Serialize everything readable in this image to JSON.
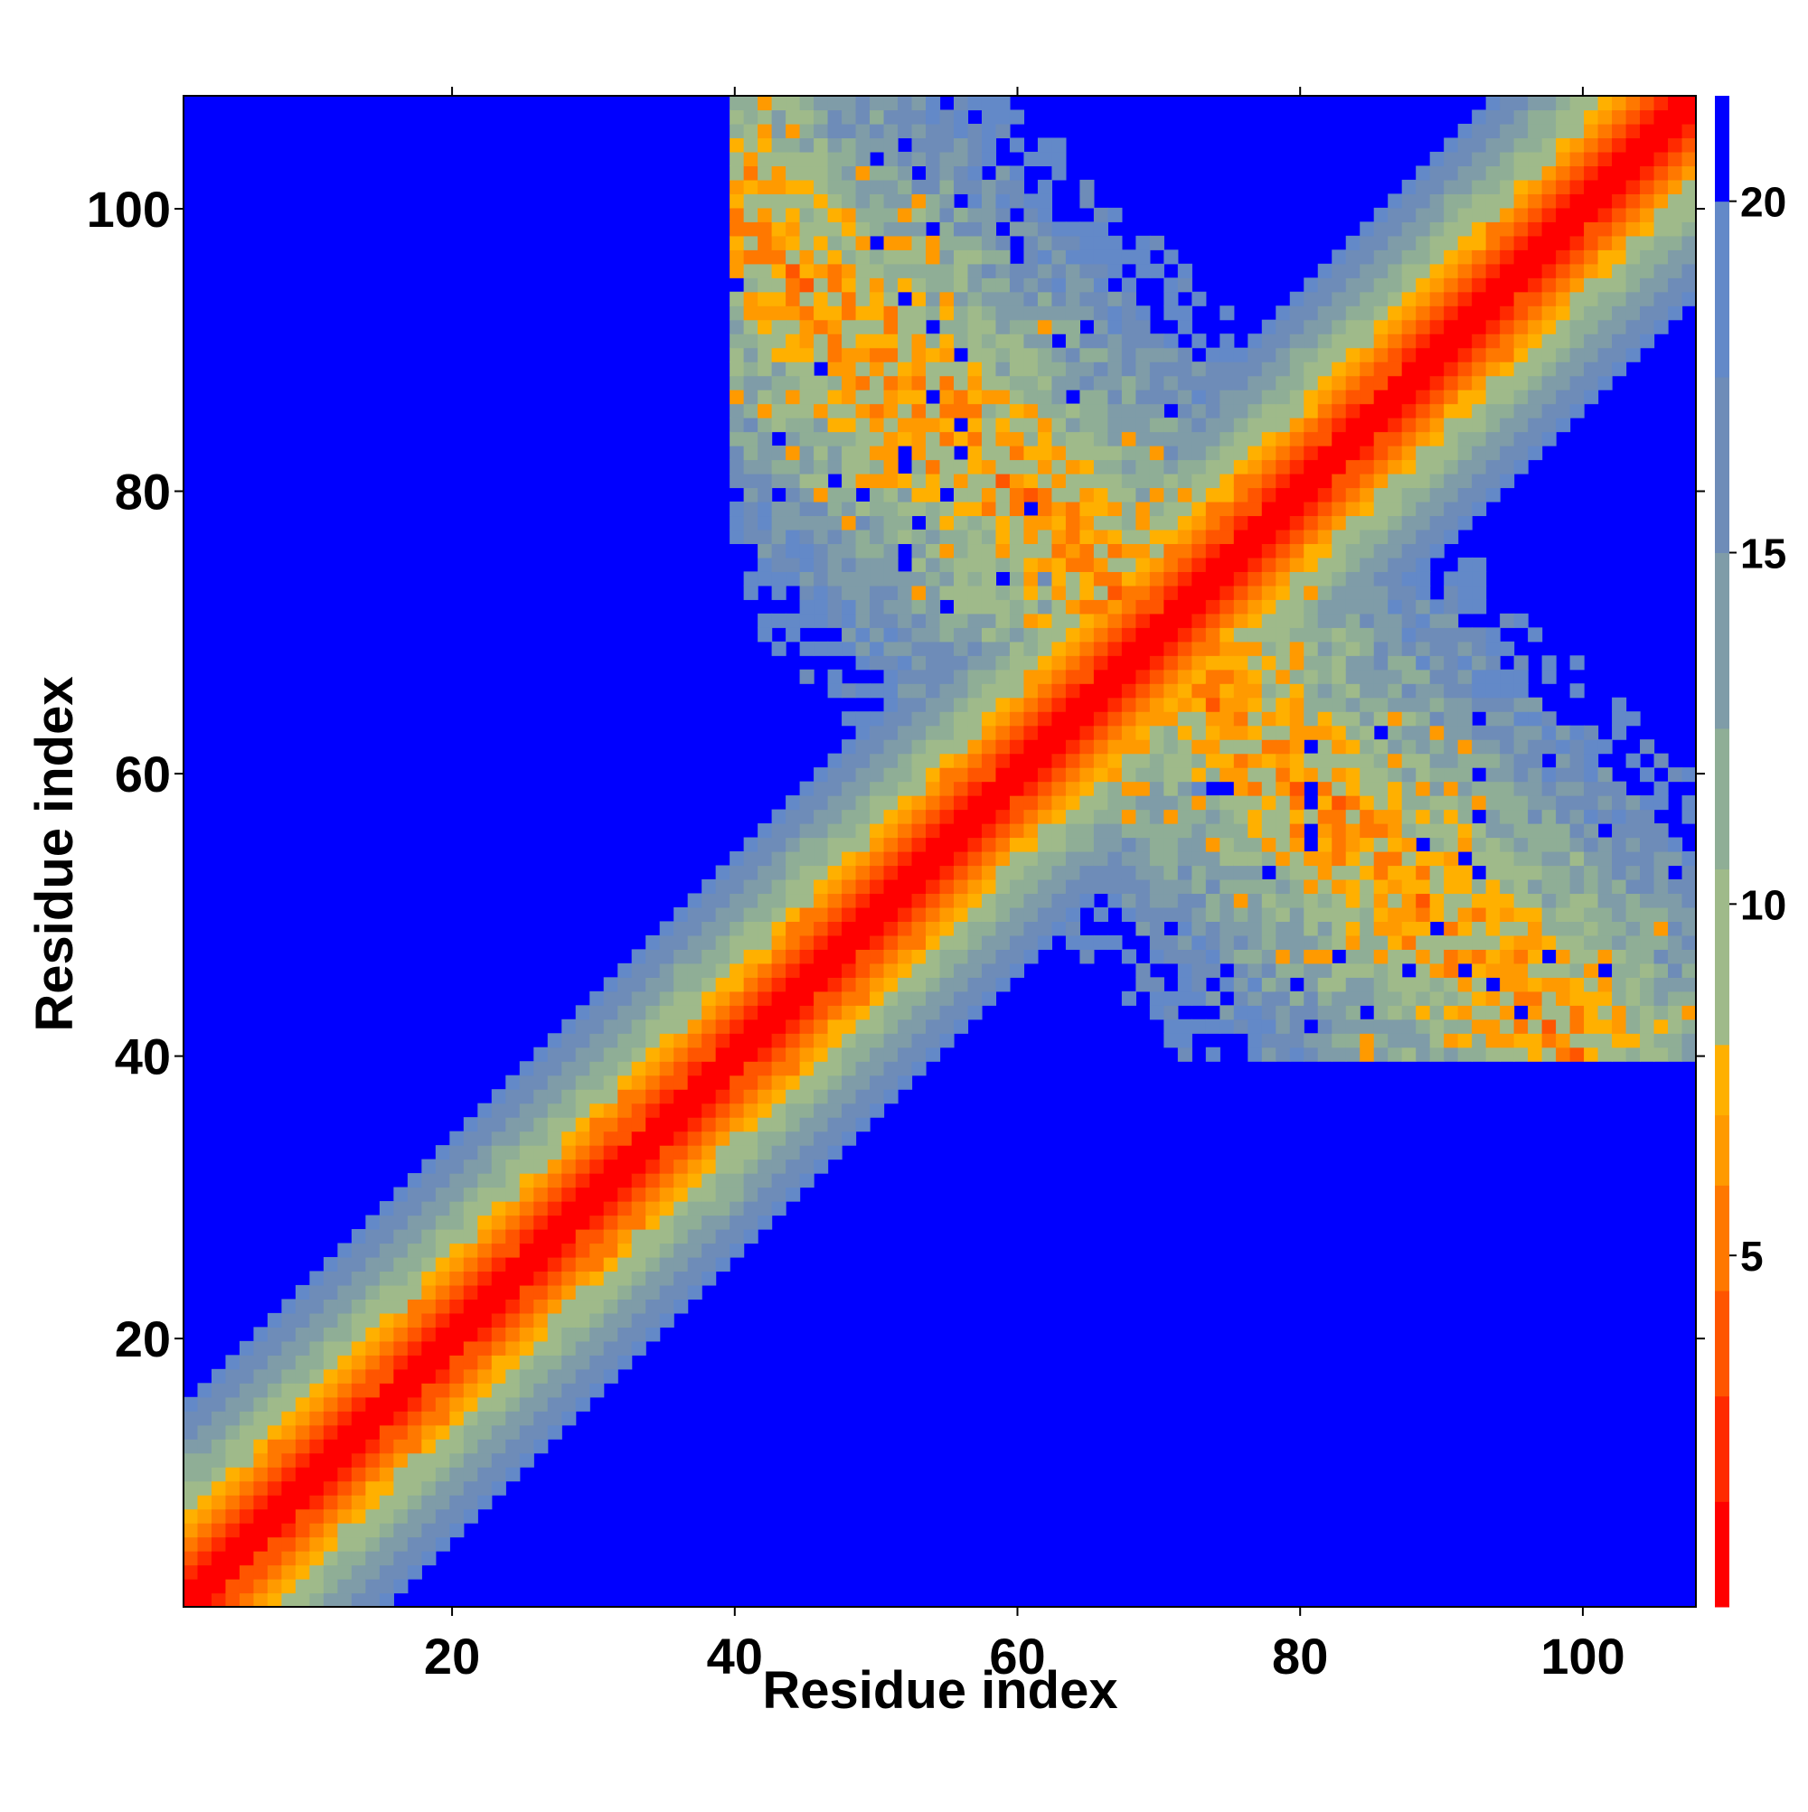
{
  "chart_data": {
    "type": "heatmap",
    "title": "",
    "xlabel": "Residue index",
    "ylabel": "Residue index",
    "xlim": [
      1,
      108
    ],
    "ylim": [
      1,
      108
    ],
    "n_residues": 108,
    "x_ticks": [
      20,
      40,
      60,
      80,
      100
    ],
    "y_ticks": [
      20,
      40,
      60,
      80,
      100
    ],
    "grid": false,
    "colorbar": {
      "range": [
        0,
        21.5
      ],
      "ticks": [
        5,
        10,
        15,
        20
      ],
      "location": "right",
      "bands": [
        {
          "max": 1.5,
          "color": "#ff0000"
        },
        {
          "max": 3.0,
          "color": "#ff2a00"
        },
        {
          "max": 4.5,
          "color": "#ff5500"
        },
        {
          "max": 6.0,
          "color": "#ff7800"
        },
        {
          "max": 7.0,
          "color": "#ff9a00"
        },
        {
          "max": 8.0,
          "color": "#ffb000"
        },
        {
          "max": 10.5,
          "color": "#9fba8a"
        },
        {
          "max": 12.5,
          "color": "#8fae96"
        },
        {
          "max": 15.0,
          "color": "#7f9ca8"
        },
        {
          "max": 17.5,
          "color": "#6e8cb8"
        },
        {
          "max": 20.0,
          "color": "#6389c8"
        },
        {
          "max": 21.5,
          "color": "#0000ff"
        }
      ]
    },
    "cell_value_rule": "distance-like value: |i-j|*1.3 along main diagonal; secondary contact band along i+j≈140 (cross-strand contacts) with values 6–17; background value 21.5",
    "main_diagonal_band": {
      "slope": 1.0,
      "half_width_residues": 14,
      "value_scale_per_residue": 1.3
    },
    "cross_band": {
      "i_plus_j": 140,
      "extent_residue_range": [
        40,
        108
      ],
      "half_width_residues": 11,
      "min_value": 6.5,
      "edge_value": 17
    }
  }
}
